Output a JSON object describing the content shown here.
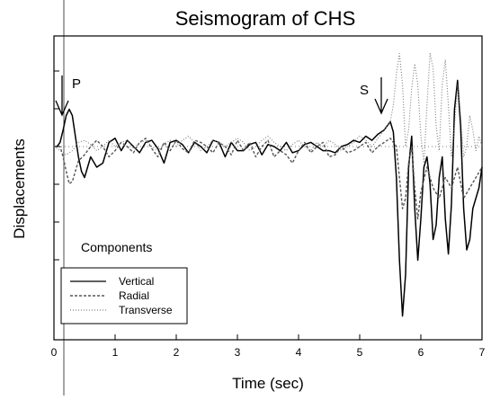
{
  "chart_data": {
    "type": "line",
    "title": "Seismogram of CHS",
    "xlabel": "Time (sec)",
    "ylabel": "Displacements",
    "xlim": [
      0,
      7
    ],
    "ylim": [
      -1.0,
      1.0
    ],
    "xticks": [
      0,
      1,
      2,
      3,
      4,
      5,
      6,
      7
    ],
    "grid": false,
    "legend": {
      "title": "Components",
      "placement": "bottom-left"
    },
    "annotations": [
      {
        "text": "P",
        "x": 0.2
      },
      {
        "text": "S",
        "x": 5.4
      }
    ],
    "series": [
      {
        "name": "Vertical",
        "style": "solid",
        "x": [
          0.0,
          0.05,
          0.1,
          0.15,
          0.2,
          0.25,
          0.3,
          0.35,
          0.4,
          0.45,
          0.5,
          0.55,
          0.6,
          0.7,
          0.8,
          0.9,
          1.0,
          1.1,
          1.2,
          1.3,
          1.4,
          1.5,
          1.6,
          1.7,
          1.8,
          1.9,
          2.0,
          2.1,
          2.2,
          2.3,
          2.4,
          2.5,
          2.6,
          2.7,
          2.8,
          2.9,
          3.0,
          3.1,
          3.2,
          3.3,
          3.4,
          3.5,
          3.6,
          3.7,
          3.8,
          3.9,
          4.0,
          4.1,
          4.2,
          4.3,
          4.4,
          4.5,
          4.6,
          4.7,
          4.8,
          4.9,
          5.0,
          5.1,
          5.2,
          5.3,
          5.4,
          5.5,
          5.55,
          5.6,
          5.65,
          5.7,
          5.75,
          5.8,
          5.85,
          5.9,
          5.95,
          6.0,
          6.05,
          6.1,
          6.15,
          6.2,
          6.25,
          6.3,
          6.35,
          6.4,
          6.45,
          6.5,
          6.55,
          6.6,
          6.65,
          6.7,
          6.75,
          6.8,
          6.85,
          6.9,
          6.95,
          7.0
        ],
        "values": [
          0.0,
          0.0,
          0.02,
          0.08,
          0.15,
          0.18,
          0.15,
          0.05,
          -0.05,
          -0.12,
          -0.15,
          -0.1,
          -0.05,
          -0.1,
          -0.08,
          0.02,
          0.04,
          -0.02,
          0.03,
          0.0,
          -0.03,
          0.02,
          0.03,
          -0.01,
          -0.08,
          0.02,
          0.03,
          0.01,
          -0.03,
          0.02,
          0.0,
          -0.03,
          0.03,
          0.02,
          -0.05,
          0.02,
          -0.02,
          -0.02,
          0.01,
          0.02,
          -0.04,
          0.01,
          0.0,
          -0.02,
          0.02,
          -0.03,
          -0.02,
          0.01,
          0.02,
          0.0,
          -0.02,
          -0.02,
          -0.03,
          0.0,
          0.01,
          0.03,
          0.02,
          0.05,
          0.03,
          0.06,
          0.08,
          0.12,
          0.07,
          -0.15,
          -0.55,
          -0.82,
          -0.62,
          -0.1,
          0.05,
          -0.3,
          -0.55,
          -0.35,
          -0.1,
          -0.05,
          -0.18,
          -0.45,
          -0.38,
          -0.15,
          -0.05,
          -0.35,
          -0.52,
          -0.28,
          0.18,
          0.32,
          0.1,
          -0.3,
          -0.5,
          -0.45,
          -0.3,
          -0.25,
          -0.2,
          -0.1
        ]
      },
      {
        "name": "Radial",
        "style": "dashed",
        "x": [
          0.0,
          0.1,
          0.15,
          0.2,
          0.25,
          0.3,
          0.35,
          0.4,
          0.5,
          0.6,
          0.7,
          0.8,
          0.9,
          1.0,
          1.1,
          1.2,
          1.3,
          1.4,
          1.5,
          1.6,
          1.7,
          1.8,
          1.9,
          2.0,
          2.1,
          2.2,
          2.3,
          2.4,
          2.5,
          2.6,
          2.7,
          2.8,
          2.9,
          3.0,
          3.1,
          3.2,
          3.3,
          3.4,
          3.5,
          3.6,
          3.7,
          3.8,
          3.9,
          4.0,
          4.1,
          4.2,
          4.3,
          4.4,
          4.5,
          4.6,
          4.7,
          4.8,
          4.9,
          5.0,
          5.1,
          5.2,
          5.3,
          5.4,
          5.5,
          5.6,
          5.65,
          5.7,
          5.75,
          5.8,
          5.85,
          5.9,
          5.95,
          6.0,
          6.1,
          6.2,
          6.3,
          6.4,
          6.5,
          6.6,
          6.7,
          6.8,
          6.9,
          7.0
        ],
        "values": [
          0.0,
          0.0,
          -0.05,
          -0.12,
          -0.18,
          -0.17,
          -0.12,
          -0.07,
          -0.04,
          0.0,
          0.03,
          0.0,
          -0.05,
          -0.02,
          0.02,
          0.0,
          -0.03,
          0.02,
          0.04,
          -0.01,
          -0.05,
          0.02,
          -0.02,
          0.03,
          -0.01,
          -0.03,
          0.03,
          0.02,
          0.0,
          -0.03,
          0.02,
          0.0,
          -0.04,
          0.03,
          -0.02,
          0.02,
          -0.05,
          0.0,
          0.03,
          -0.05,
          -0.02,
          -0.04,
          -0.08,
          -0.02,
          0.02,
          -0.03,
          0.0,
          0.02,
          -0.05,
          -0.04,
          0.0,
          -0.03,
          -0.02,
          0.0,
          0.02,
          -0.03,
          0.0,
          0.02,
          0.04,
          0.0,
          -0.15,
          -0.3,
          -0.25,
          -0.08,
          0.0,
          -0.2,
          -0.35,
          -0.22,
          -0.1,
          -0.2,
          -0.25,
          -0.15,
          -0.2,
          -0.1,
          -0.25,
          -0.2,
          -0.15,
          -0.1
        ]
      },
      {
        "name": "Transverse",
        "style": "dotted",
        "x": [
          0.0,
          0.1,
          0.2,
          0.3,
          0.4,
          0.5,
          0.6,
          0.7,
          0.8,
          0.9,
          1.0,
          1.1,
          1.2,
          1.3,
          1.4,
          1.5,
          1.6,
          1.7,
          1.8,
          1.9,
          2.0,
          2.1,
          2.2,
          2.3,
          2.4,
          2.5,
          2.6,
          2.7,
          2.8,
          2.9,
          3.0,
          3.1,
          3.2,
          3.3,
          3.4,
          3.5,
          3.6,
          3.7,
          3.8,
          3.9,
          4.0,
          4.1,
          4.2,
          4.3,
          4.4,
          4.5,
          4.6,
          4.7,
          4.8,
          4.9,
          5.0,
          5.1,
          5.2,
          5.3,
          5.4,
          5.5,
          5.55,
          5.6,
          5.65,
          5.7,
          5.75,
          5.8,
          5.85,
          5.9,
          5.95,
          6.0,
          6.05,
          6.1,
          6.15,
          6.2,
          6.25,
          6.3,
          6.35,
          6.4,
          6.45,
          6.5,
          6.55,
          6.6,
          6.65,
          6.7,
          6.75,
          6.8,
          6.85,
          6.9,
          6.95,
          7.0
        ],
        "values": [
          0.0,
          -0.02,
          -0.04,
          -0.02,
          0.02,
          0.03,
          0.01,
          -0.02,
          0.0,
          0.03,
          0.0,
          0.02,
          0.03,
          -0.01,
          0.02,
          0.03,
          0.0,
          -0.02,
          0.01,
          0.03,
          0.0,
          0.03,
          0.05,
          0.02,
          -0.02,
          0.0,
          0.03,
          0.02,
          0.0,
          0.02,
          0.04,
          0.02,
          -0.02,
          0.0,
          0.03,
          0.05,
          0.02,
          0.0,
          -0.02,
          0.01,
          0.03,
          0.0,
          -0.02,
          0.02,
          0.0,
          0.03,
          0.01,
          -0.02,
          0.0,
          0.02,
          0.05,
          0.03,
          0.0,
          0.04,
          0.08,
          0.12,
          0.2,
          0.35,
          0.45,
          0.3,
          0.0,
          0.08,
          0.28,
          0.4,
          0.3,
          0.05,
          -0.08,
          0.2,
          0.45,
          0.38,
          0.1,
          -0.02,
          0.3,
          0.42,
          0.2,
          -0.05,
          0.1,
          0.3,
          0.15,
          -0.05,
          0.0,
          0.15,
          0.08,
          -0.02,
          0.05,
          0.0
        ]
      }
    ]
  }
}
